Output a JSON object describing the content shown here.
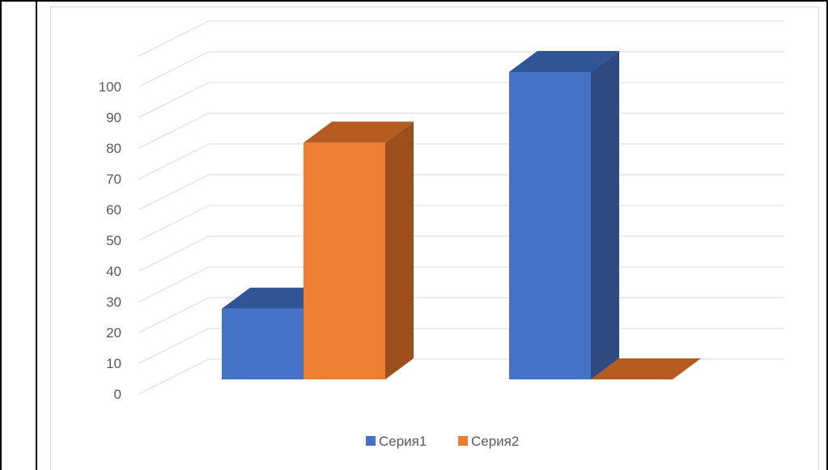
{
  "chart_data": {
    "type": "bar",
    "style": "3d-clustered-column",
    "categories": [
      "",
      ""
    ],
    "series": [
      {
        "name": "Серия1",
        "values": [
          23,
          100
        ],
        "color": "#4472C4",
        "side_color": "#2E4A80",
        "top_color": "#2F5597"
      },
      {
        "name": "Серия2",
        "values": [
          77,
          0
        ],
        "color": "#ED7D31",
        "side_color": "#9C4F1C",
        "top_color": "#B65C22"
      }
    ],
    "y_ticks": [
      "0",
      "10",
      "20",
      "30",
      "40",
      "50",
      "60",
      "70",
      "80",
      "90",
      "100"
    ],
    "ylim": [
      0,
      110
    ],
    "title": "",
    "xlabel": "",
    "ylabel": "",
    "grid": true,
    "legend_position": "bottom"
  }
}
